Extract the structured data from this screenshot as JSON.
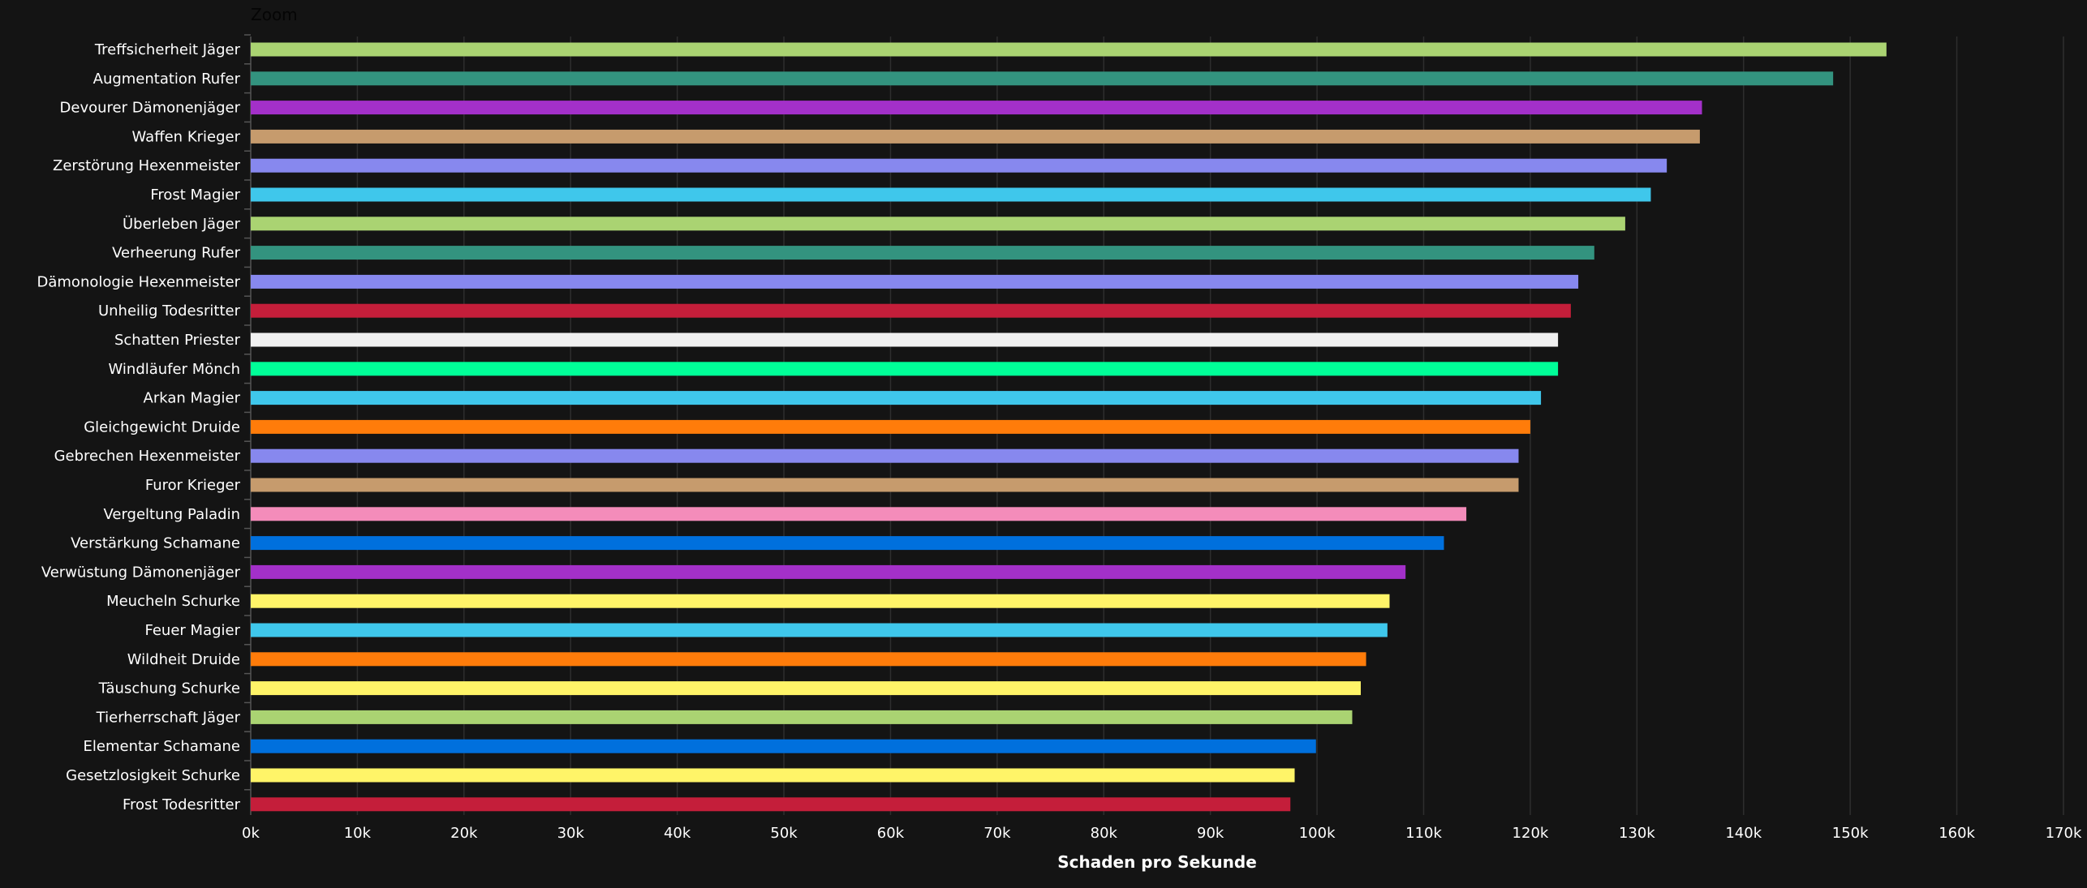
{
  "chart_data": {
    "type": "bar",
    "orientation": "horizontal",
    "title": "Zoom",
    "xlabel": "Schaden pro Sekunde",
    "ylabel": "",
    "xlim": [
      0,
      170000
    ],
    "x_ticks": [
      "0k",
      "10k",
      "20k",
      "30k",
      "40k",
      "50k",
      "60k",
      "70k",
      "80k",
      "90k",
      "100k",
      "110k",
      "120k",
      "130k",
      "140k",
      "150k",
      "160k",
      "170k"
    ],
    "grid": true,
    "categories": [
      "Treffsicherheit Jäger",
      "Augmentation Rufer",
      "Devourer Dämonenjäger",
      "Waffen Krieger",
      "Zerstörung Hexenmeister",
      "Frost Magier",
      "Überleben Jäger",
      "Verheerung Rufer",
      "Dämonologie Hexenmeister",
      "Unheilig Todesritter",
      "Schatten Priester",
      "Windläufer Mönch",
      "Arkan Magier",
      "Gleichgewicht Druide",
      "Gebrechen Hexenmeister",
      "Furor Krieger",
      "Vergeltung Paladin",
      "Verstärkung Schamane",
      "Verwüstung Dämonenjäger",
      "Meucheln Schurke",
      "Feuer Magier",
      "Wildheit Druide",
      "Täuschung Schurke",
      "Tierherrschaft Jäger",
      "Elementar Schamane",
      "Gesetzlosigkeit Schurke",
      "Frost Todesritter"
    ],
    "values": [
      153400,
      148400,
      136100,
      135900,
      132800,
      131300,
      128900,
      126000,
      124500,
      123800,
      122600,
      122600,
      121000,
      120000,
      118900,
      118900,
      114000,
      111900,
      108300,
      106800,
      106600,
      104600,
      104100,
      103300,
      99900,
      97900,
      97500
    ],
    "colors": [
      "#aad372",
      "#33937f",
      "#a330c9",
      "#c69b6d",
      "#8788ee",
      "#3fc7eb",
      "#aad372",
      "#33937f",
      "#8788ee",
      "#c41e3a",
      "#f0f0f0",
      "#00ff98",
      "#3fc7eb",
      "#ff7c0a",
      "#8788ee",
      "#c69b6d",
      "#f48cba",
      "#0070dd",
      "#a330c9",
      "#fff468",
      "#3fc7eb",
      "#ff7c0a",
      "#fff468",
      "#aad372",
      "#0070dd",
      "#fff468",
      "#c41e3a"
    ]
  }
}
